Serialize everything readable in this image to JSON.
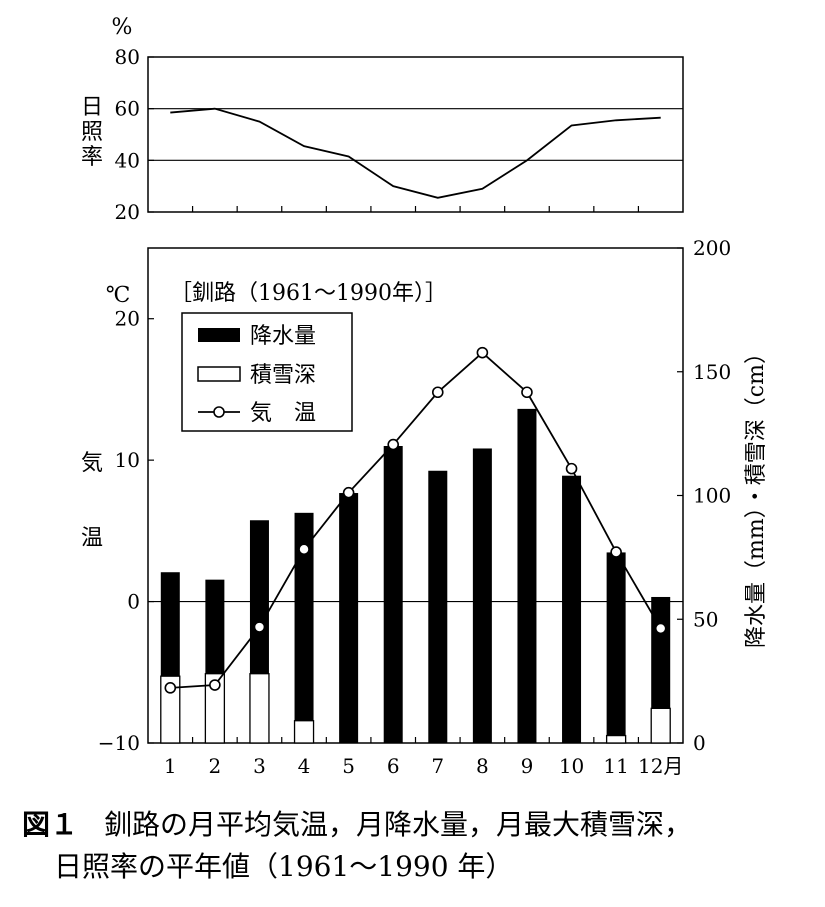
{
  "sunshine": {
    "unit": "%",
    "label": "日照率",
    "yticks": [
      80,
      60,
      40,
      20
    ],
    "ylim": [
      20,
      80
    ],
    "gridlines": [
      60,
      40
    ]
  },
  "main": {
    "temp_unit": "℃",
    "temp_label": "気温",
    "station": "［釧路（1961〜1990年）］",
    "y_left_ticks": [
      20,
      10,
      0,
      -10
    ],
    "y_left_tick_labels": [
      "20",
      "10",
      "0",
      "−10"
    ],
    "y_left_lim": [
      -10,
      25
    ],
    "y_right_ticks": [
      200,
      150,
      100,
      50,
      0
    ],
    "y_right_lim": [
      0,
      200
    ],
    "y_right_label": "降水量（mm）・積雪深（cm）",
    "x_tick_labels": [
      "1",
      "2",
      "3",
      "4",
      "5",
      "6",
      "7",
      "8",
      "9",
      "10",
      "11",
      "12月"
    ],
    "legend": {
      "precip": "降水量",
      "snow": "積雪深",
      "temp": "気　温"
    }
  },
  "chart_data": [
    {
      "type": "line",
      "x": [
        1,
        2,
        3,
        4,
        5,
        6,
        7,
        8,
        9,
        10,
        11,
        12
      ],
      "series": [
        {
          "name": "日照率",
          "values": [
            58.5,
            60,
            55,
            45.5,
            41.5,
            30,
            25.5,
            29,
            40,
            53.5,
            55.5,
            56.5
          ]
        }
      ],
      "ylabel": "日照率 %",
      "ylim": [
        20,
        80
      ],
      "grid": true
    },
    {
      "type": "bar",
      "categories": [
        "1",
        "2",
        "3",
        "4",
        "5",
        "6",
        "7",
        "8",
        "9",
        "10",
        "11",
        "12月"
      ],
      "series": [
        {
          "name": "降水量",
          "axis": "right",
          "values": [
            69,
            66,
            90,
            93,
            101,
            120,
            110,
            119,
            135,
            108,
            77,
            59
          ]
        },
        {
          "name": "積雪深",
          "axis": "right",
          "values": [
            27,
            28,
            28,
            9,
            0,
            0,
            0,
            0,
            0,
            0,
            3,
            14
          ]
        },
        {
          "name": "気　温",
          "axis": "left",
          "type": "line",
          "values": [
            -6.1,
            -5.9,
            -1.8,
            3.7,
            7.7,
            11.1,
            14.8,
            17.6,
            14.8,
            9.4,
            3.5,
            -1.9
          ]
        }
      ],
      "ylabel_left": "気温 ℃",
      "ylabel_right": "降水量（mm）・積雪深（cm）",
      "ylim_left": [
        -10,
        25
      ],
      "ylim_right": [
        0,
        200
      ]
    }
  ],
  "caption": {
    "figure_no": "図１",
    "line1": "釧路の月平均気温，月降水量，月最大積雪深，",
    "line2": "日照率の平年値（1961〜1990 年）"
  }
}
